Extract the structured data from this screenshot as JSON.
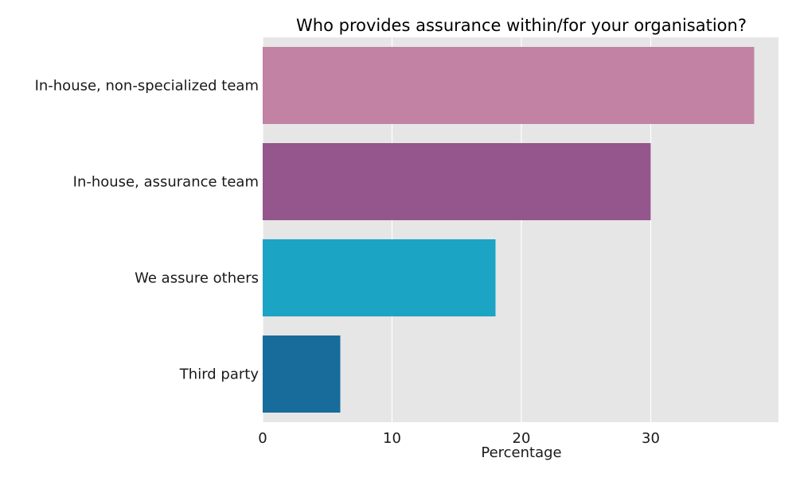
{
  "chart_data": {
    "type": "bar",
    "orientation": "horizontal",
    "title": "Who provides assurance within/for your organisation?",
    "xlabel": "Percentage",
    "ylabel": "",
    "categories": [
      "In-house, non-specialized team",
      "In-house, assurance team",
      "We assure others",
      "Third party"
    ],
    "values": [
      38,
      30,
      18,
      6
    ],
    "colors": [
      "#c282a4",
      "#94568c",
      "#1ca4c4",
      "#186c9c"
    ],
    "xlim": [
      0,
      40
    ],
    "xticks": [
      0,
      10,
      20,
      30
    ],
    "grid": true,
    "background": "#e6e6e6",
    "grid_color": "#ffffff"
  }
}
